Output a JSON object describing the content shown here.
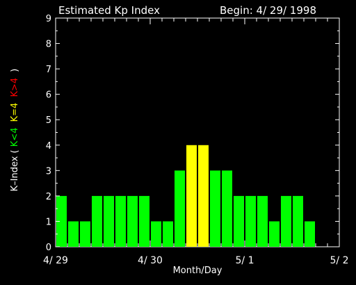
{
  "title": "Estimated Kp Index",
  "begin_label": "Begin: 4/ 29/ 1998",
  "ylabel": {
    "prefix": "K–Index (",
    "green": "K<4",
    "yellow": "K=4",
    "red": "K>4",
    "suffix": ")"
  },
  "colors": {
    "green": "#00ff00",
    "yellow": "#ffff00",
    "red": "#ff0000",
    "axis": "#ffffff",
    "background": "#000000"
  },
  "chart_data": {
    "type": "bar",
    "title": "Estimated Kp Index",
    "subtitle": "Begin: 4/ 29/ 1998",
    "xlabel": "Month/Day",
    "ylabel": "K–Index ( K<4  K=4  K>4 )",
    "ylim": [
      0,
      9
    ],
    "xlim_intervals": [
      0,
      24
    ],
    "yticks": [
      "0",
      "1",
      "2",
      "3",
      "4",
      "5",
      "6",
      "7",
      "8",
      "9"
    ],
    "xticks": [
      {
        "label": "4/ 29",
        "at": 0
      },
      {
        "label": "4/ 30",
        "at": 8
      },
      {
        "label": "5/ 1",
        "at": 16
      },
      {
        "label": "5/ 2",
        "at": 24
      }
    ],
    "interval": "3-hour",
    "values": [
      2,
      1,
      1,
      2,
      2,
      2,
      2,
      2,
      1,
      1,
      3,
      4,
      4,
      3,
      3,
      2,
      2,
      2,
      1,
      2,
      2,
      1
    ],
    "color_rule": "green if K<4, yellow if K=4, red if K>4",
    "grid": false
  }
}
